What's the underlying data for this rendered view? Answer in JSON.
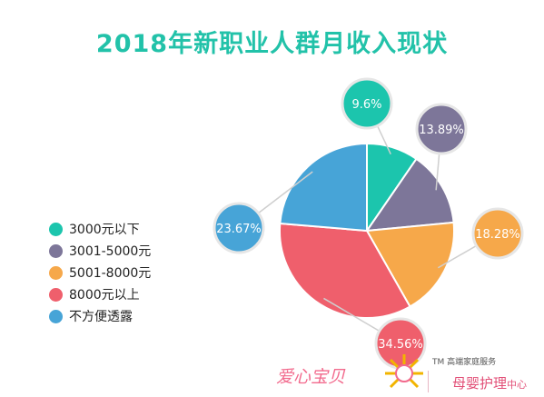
{
  "chart_data": {
    "type": "pie",
    "title": "2018年新职业人群月收入现状",
    "categories": [
      "3000元以下",
      "3001-5000元",
      "5001-8000元",
      "8000元以上",
      "不方便透露"
    ],
    "values": [
      9.6,
      13.89,
      18.28,
      34.56,
      23.67
    ],
    "value_labels": [
      "9.6%",
      "13.89%",
      "18.28%",
      "34.56%",
      "23.67%"
    ],
    "colors": [
      "#1cc5ad",
      "#7d7699",
      "#f6a84a",
      "#ef5f6c",
      "#47a4d7"
    ],
    "legend_position": "left"
  },
  "footer": {
    "brand_name": "爱心宝贝",
    "brand_tm": "TM",
    "brand_tagline": "高端家庭服务",
    "brand_sub_main": "母婴护理",
    "brand_sub_tail": "中心"
  }
}
